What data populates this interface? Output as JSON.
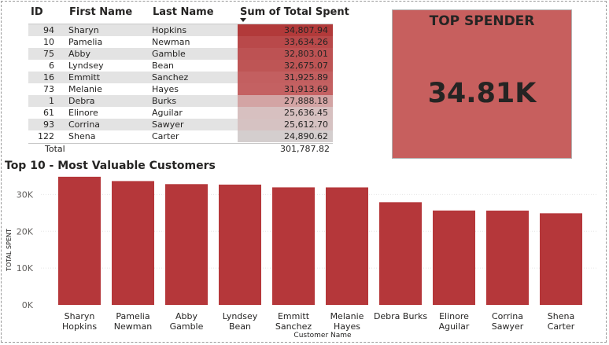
{
  "table": {
    "headers": {
      "id": "ID",
      "first": "First Name",
      "last": "Last Name",
      "sum": "Sum of Total Spent"
    },
    "rows": [
      {
        "id": "94",
        "first": "Sharyn",
        "last": "Hopkins",
        "amount": "34,807.94",
        "color": "#b23a3a"
      },
      {
        "id": "10",
        "first": "Pamelia",
        "last": "Newman",
        "amount": "33,634.26",
        "color": "#b9494a"
      },
      {
        "id": "75",
        "first": "Abby",
        "last": "Gamble",
        "amount": "32,803.01",
        "color": "#bd5253"
      },
      {
        "id": "6",
        "first": "Lyndsey",
        "last": "Bean",
        "amount": "32,675.07",
        "color": "#be5555"
      },
      {
        "id": "16",
        "first": "Emmitt",
        "last": "Sanchez",
        "amount": "31,925.89",
        "color": "#c35f60"
      },
      {
        "id": "73",
        "first": "Melanie",
        "last": "Hayes",
        "amount": "31,913.69",
        "color": "#c46162"
      },
      {
        "id": "1",
        "first": "Debra",
        "last": "Burks",
        "amount": "27,888.18",
        "color": "#d3a4a4"
      },
      {
        "id": "61",
        "first": "Elinore",
        "last": "Aguilar",
        "amount": "25,636.45",
        "color": "#d7c0c0"
      },
      {
        "id": "93",
        "first": "Corrina",
        "last": "Sawyer",
        "amount": "25,612.70",
        "color": "#d6c2c2"
      },
      {
        "id": "122",
        "first": "Shena",
        "last": "Carter",
        "amount": "24,890.62",
        "color": "#d4cece"
      }
    ],
    "total_label": "Total",
    "total_value": "301,787.82"
  },
  "card": {
    "title": "TOP SPENDER",
    "value": "34.81K",
    "color": "#c75f5e"
  },
  "chart_data": {
    "type": "bar",
    "title": "Top 10 - Most Valuable Customers",
    "xlabel": "Customer Name",
    "ylabel": "TOTAL SPENT",
    "ylim": [
      0,
      35000
    ],
    "yticks": [
      0,
      10000,
      20000,
      30000
    ],
    "ytick_labels": [
      "0K",
      "10K",
      "20K",
      "30K"
    ],
    "bar_color": "#b5373a",
    "categories": [
      [
        "Sharyn",
        "Hopkins"
      ],
      [
        "Pamelia",
        "Newman"
      ],
      [
        "Abby",
        "Gamble"
      ],
      [
        "Lyndsey",
        "Bean"
      ],
      [
        "Emmitt",
        "Sanchez"
      ],
      [
        "Melanie",
        "Hayes"
      ],
      [
        "Debra Burks"
      ],
      [
        "Elinore",
        "Aguilar"
      ],
      [
        "Corrina",
        "Sawyer"
      ],
      [
        "Shena",
        "Carter"
      ]
    ],
    "values": [
      34807.94,
      33634.26,
      32803.01,
      32675.07,
      31925.89,
      31913.69,
      27888.18,
      25636.45,
      25612.7,
      24890.62
    ]
  }
}
